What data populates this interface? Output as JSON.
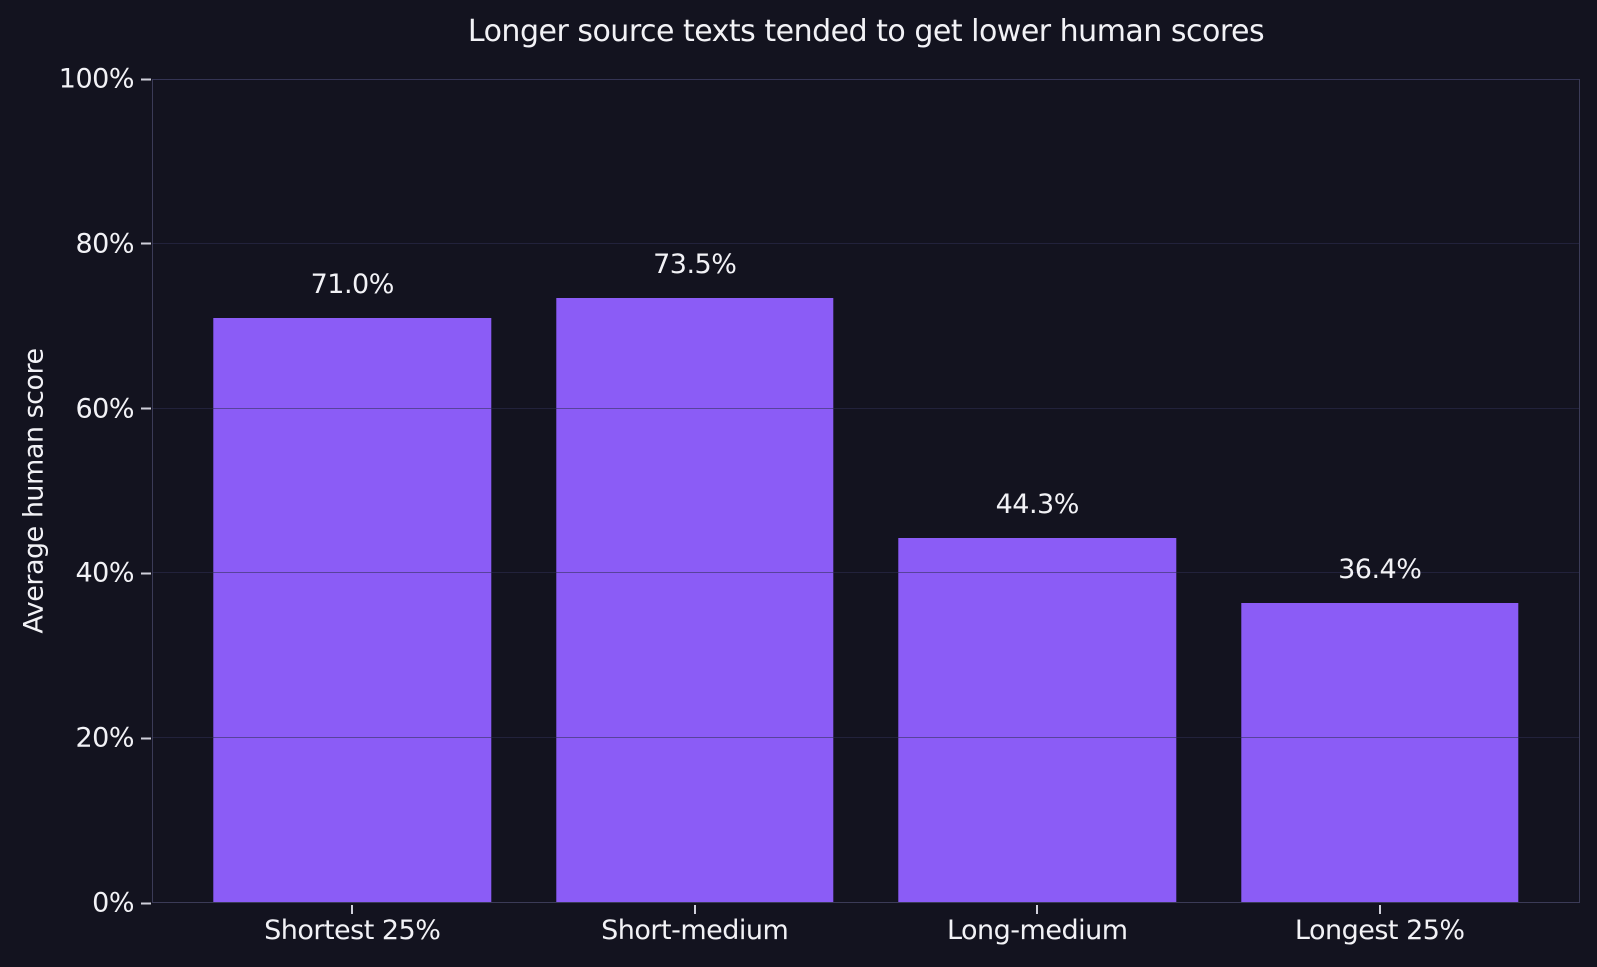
{
  "chart_data": {
    "type": "bar",
    "title": "Longer source texts tended to get lower human scores",
    "xlabel": "",
    "ylabel": "Average human score",
    "categories": [
      "Shortest 25%",
      "Short-medium",
      "Long-medium",
      "Longest 25%"
    ],
    "values": [
      71.0,
      73.5,
      44.3,
      36.4
    ],
    "bar_labels": [
      "71.0%",
      "73.5%",
      "44.3%",
      "36.4%"
    ],
    "ylim": [
      0,
      100
    ],
    "yticks": {
      "values": [
        0,
        20,
        40,
        60,
        80,
        100
      ],
      "labels": [
        "0%",
        "20%",
        "40%",
        "60%",
        "80%",
        "100%"
      ]
    },
    "grid": "horizontal",
    "legend": "none",
    "colors": {
      "background": "#13131F",
      "bar": "#8B5CF6",
      "text": "#F2F2F6",
      "spine": "#3B3B57",
      "gridline": "rgba(48,48,82,0.55)",
      "tick_mark": "#D0D0DB"
    }
  }
}
